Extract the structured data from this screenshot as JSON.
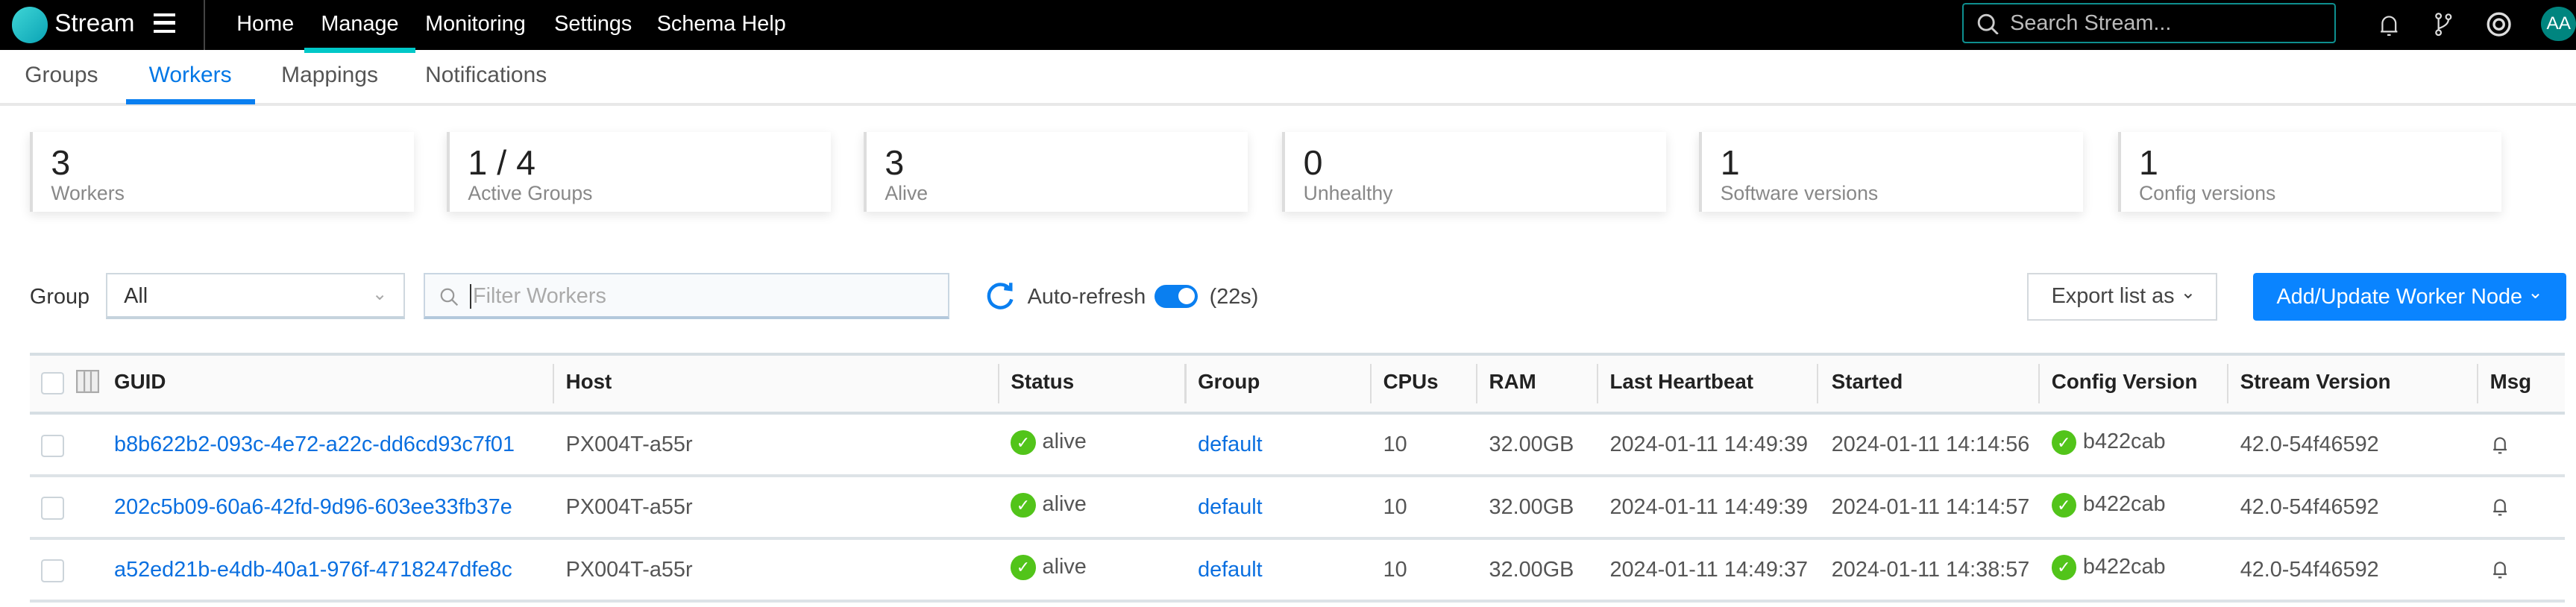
{
  "header": {
    "brand": "Stream",
    "nav": [
      "Home",
      "Manage",
      "Monitoring",
      "Settings",
      "Schema Help"
    ],
    "active_nav": "Manage",
    "search_placeholder": "Search Stream...",
    "avatar": "AA"
  },
  "subtabs": [
    "Groups",
    "Workers",
    "Mappings",
    "Notifications"
  ],
  "active_subtab": "Workers",
  "cards": [
    {
      "value": "3",
      "label": "Workers"
    },
    {
      "value": "1 / 4",
      "label": "Active Groups"
    },
    {
      "value": "3",
      "label": "Alive"
    },
    {
      "value": "0",
      "label": "Unhealthy"
    },
    {
      "value": "1",
      "label": "Software versions"
    },
    {
      "value": "1",
      "label": "Config versions"
    }
  ],
  "toolbar": {
    "group_label": "Group",
    "group_value": "All",
    "filter_placeholder": "Filter Workers",
    "autorefresh_label": "Auto-refresh",
    "autorefresh_on": true,
    "countdown": "(22s)",
    "export_label": "Export list as",
    "add_label": "Add/Update Worker Node"
  },
  "table": {
    "columns": [
      "GUID",
      "Host",
      "Status",
      "Group",
      "CPUs",
      "RAM",
      "Last Heartbeat",
      "Started",
      "Config Version",
      "Stream Version",
      "Msg"
    ],
    "rows": [
      {
        "guid": "b8b622b2-093c-4e72-a22c-dd6cd93c7f01",
        "host": "PX004T-a55r",
        "status": "alive",
        "group": "default",
        "cpus": "10",
        "ram": "32.00GB",
        "heartbeat": "2024-01-11 14:49:39",
        "started": "2024-01-11 14:14:56",
        "config": "b422cab",
        "version": "42.0-54f46592"
      },
      {
        "guid": "202c5b09-60a6-42fd-9d96-603ee33fb37e",
        "host": "PX004T-a55r",
        "status": "alive",
        "group": "default",
        "cpus": "10",
        "ram": "32.00GB",
        "heartbeat": "2024-01-11 14:49:39",
        "started": "2024-01-11 14:14:57",
        "config": "b422cab",
        "version": "42.0-54f46592"
      },
      {
        "guid": "a52ed21b-e4db-40a1-976f-4718247dfe8c",
        "host": "PX004T-a55r",
        "status": "alive",
        "group": "default",
        "cpus": "10",
        "ram": "32.00GB",
        "heartbeat": "2024-01-11 14:49:37",
        "started": "2024-01-11 14:38:57",
        "config": "b422cab",
        "version": "42.0-54f46592"
      }
    ]
  },
  "colors": {
    "accent": "#0a84ff",
    "nav_underline": "#00c8c8",
    "alive": "#52c41a",
    "avatar": "#00857f"
  }
}
